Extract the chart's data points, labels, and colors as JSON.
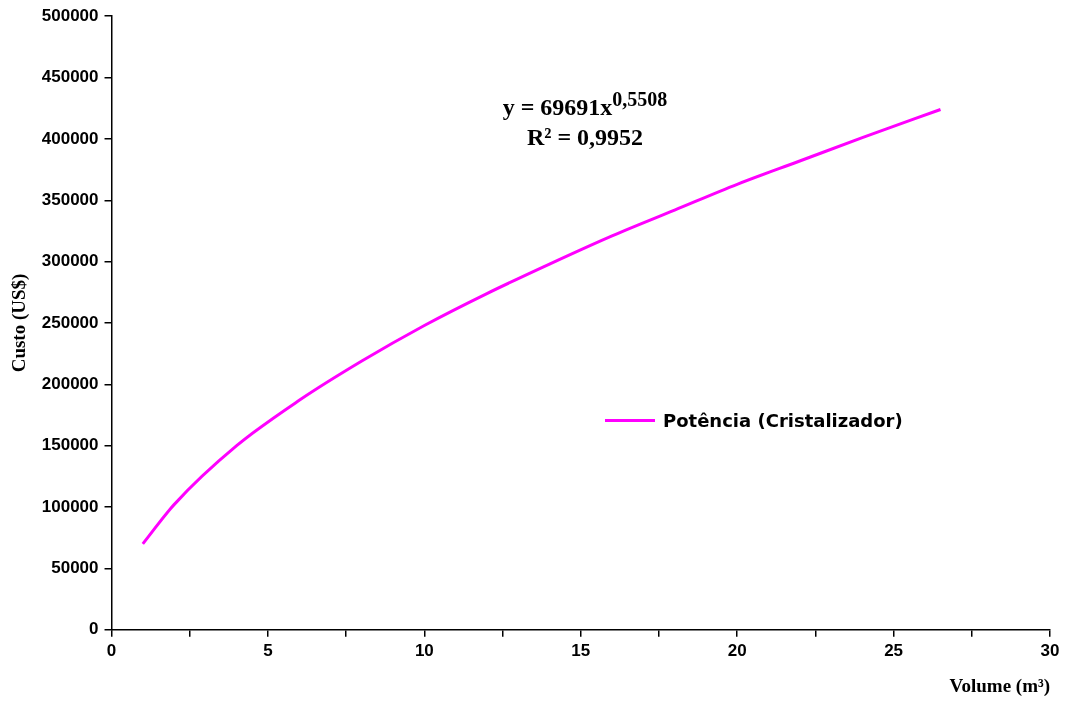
{
  "chart_data": {
    "type": "line",
    "xlabel": "Volume (m³)",
    "ylabel": "Custo (US$)",
    "annotations": [
      "y = 69691x$^{0,5508}$",
      "R² = 0,9952"
    ],
    "series": [
      {
        "name": "Potência (Cristalizador)",
        "color": "#ff00ff",
        "x": [
          1,
          2,
          4,
          6,
          8,
          10,
          12,
          14,
          16,
          18,
          20,
          22,
          24,
          26.5
        ],
        "values": [
          70000,
          102000,
          150000,
          187000,
          219000,
          248000,
          274000,
          298000,
          321000,
          342000,
          363000,
          382000,
          401000,
          424000
        ]
      }
    ],
    "xlim": [
      0,
      30
    ],
    "ylim": [
      0,
      500000
    ],
    "xticks": [
      0,
      {
        "value": 2.5,
        "label": null
      },
      5,
      {
        "value": 7.5,
        "label": null
      },
      10,
      {
        "value": 12.5,
        "label": null
      },
      15,
      {
        "value": 17.5,
        "label": null
      },
      20,
      {
        "value": 22.5,
        "label": null
      },
      25,
      {
        "value": 27.5,
        "label": null
      },
      30
    ],
    "yticks": [
      0,
      50000,
      100000,
      150000,
      200000,
      250000,
      300000,
      350000,
      400000,
      450000,
      500000
    ],
    "grid": false,
    "legend": "right",
    "marker": "none",
    "line_style": "solid"
  }
}
